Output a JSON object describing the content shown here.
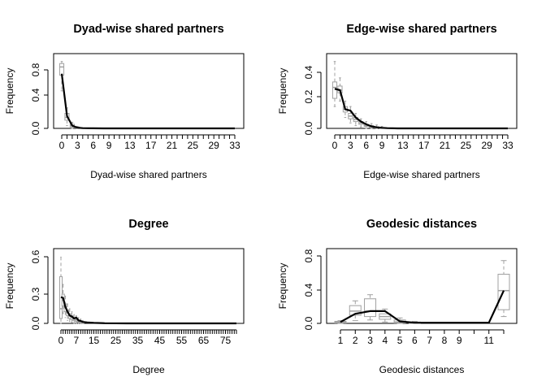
{
  "chart_data": [
    {
      "type": "line",
      "title": "Dyad-wise shared partners",
      "xlabel": "Dyad-wise shared partners",
      "ylabel": "Frequency",
      "xlim": [
        0,
        33
      ],
      "ylim": [
        0,
        1.0
      ],
      "y_ticks": [
        "0.0",
        "0.4",
        "0.8"
      ],
      "x_ticks": [
        "0",
        "3",
        "6",
        "9",
        "13",
        "17",
        "21",
        "25",
        "29",
        "33"
      ],
      "grid": false,
      "x": [
        0,
        1,
        2,
        3,
        4,
        5,
        6,
        8,
        10,
        15,
        20,
        25,
        30,
        33
      ],
      "series": [
        {
          "values": [
            0.8,
            0.18,
            0.04,
            0.01,
            0.004,
            0.002,
            0.001,
            0.0,
            0.0,
            0.0,
            0.0,
            0.0,
            0.0,
            0.0
          ]
        }
      ],
      "boxes": [
        {
          "x": 0,
          "q1": 0.78,
          "q3": 0.95,
          "median": 0.9,
          "lo": 0.55,
          "hi": 0.98
        },
        {
          "x": 1,
          "q1": 0.12,
          "q3": 0.22,
          "median": 0.16,
          "lo": 0.04,
          "hi": 0.3
        },
        {
          "x": 2,
          "q1": 0.02,
          "q3": 0.06,
          "median": 0.04,
          "lo": 0.0,
          "hi": 0.09
        },
        {
          "x": 3,
          "q1": 0.005,
          "q3": 0.02,
          "median": 0.01,
          "lo": 0.0,
          "hi": 0.03
        }
      ]
    },
    {
      "type": "line",
      "title": "Edge-wise shared partners",
      "xlabel": "Edge-wise shared partners",
      "ylabel": "Frequency",
      "xlim": [
        0,
        33
      ],
      "ylim": [
        0,
        0.5
      ],
      "y_ticks": [
        "0.0",
        "0.2",
        "0.4"
      ],
      "x_ticks": [
        "0",
        "3",
        "6",
        "9",
        "13",
        "17",
        "21",
        "25",
        "29",
        "33"
      ],
      "grid": false,
      "x": [
        0,
        1,
        2,
        3,
        4,
        5,
        6,
        7,
        8,
        9,
        10,
        12,
        15,
        20,
        25,
        30,
        33
      ],
      "series": [
        {
          "values": [
            0.29,
            0.28,
            0.14,
            0.13,
            0.08,
            0.05,
            0.03,
            0.015,
            0.008,
            0.004,
            0.002,
            0.0,
            0.0,
            0.0,
            0.0,
            0.0,
            0.0
          ]
        }
      ],
      "boxes": [
        {
          "x": 0,
          "q1": 0.22,
          "q3": 0.34,
          "median": 0.3,
          "lo": 0.16,
          "hi": 0.49
        },
        {
          "x": 1,
          "q1": 0.26,
          "q3": 0.31,
          "median": 0.28,
          "lo": 0.2,
          "hi": 0.37
        },
        {
          "x": 2,
          "q1": 0.12,
          "q3": 0.16,
          "median": 0.14,
          "lo": 0.08,
          "hi": 0.2
        },
        {
          "x": 3,
          "q1": 0.07,
          "q3": 0.11,
          "median": 0.09,
          "lo": 0.04,
          "hi": 0.16
        },
        {
          "x": 4,
          "q1": 0.05,
          "q3": 0.08,
          "median": 0.065,
          "lo": 0.02,
          "hi": 0.11
        },
        {
          "x": 5,
          "q1": 0.03,
          "q3": 0.05,
          "median": 0.04,
          "lo": 0.01,
          "hi": 0.07
        },
        {
          "x": 6,
          "q1": 0.015,
          "q3": 0.03,
          "median": 0.02,
          "lo": 0.0,
          "hi": 0.05
        },
        {
          "x": 7,
          "q1": 0.008,
          "q3": 0.02,
          "median": 0.012,
          "lo": 0.0,
          "hi": 0.035
        },
        {
          "x": 8,
          "q1": 0.003,
          "q3": 0.012,
          "median": 0.006,
          "lo": 0.0,
          "hi": 0.025
        },
        {
          "x": 9,
          "q1": 0.001,
          "q3": 0.006,
          "median": 0.003,
          "lo": 0.0,
          "hi": 0.015
        }
      ]
    },
    {
      "type": "line",
      "title": "Degree",
      "xlabel": "Degree",
      "ylabel": "Frequency",
      "xlim": [
        0,
        80
      ],
      "ylim": [
        0,
        0.7
      ],
      "y_ticks": [
        "0.0",
        "0.3",
        "0.6"
      ],
      "x_ticks": [
        "0",
        "7",
        "15",
        "25",
        "35",
        "45",
        "55",
        "65",
        "75"
      ],
      "grid": false,
      "x": [
        0,
        1,
        2,
        3,
        4,
        5,
        6,
        7,
        8,
        9,
        10,
        12,
        15,
        20,
        30,
        40,
        50,
        60,
        70,
        80
      ],
      "series": [
        {
          "values": [
            0.27,
            0.26,
            0.17,
            0.12,
            0.08,
            0.07,
            0.05,
            0.06,
            0.03,
            0.025,
            0.015,
            0.01,
            0.005,
            0.002,
            0.0,
            0.0,
            0.0,
            0.0,
            0.0,
            0.0
          ]
        }
      ],
      "boxes": [
        {
          "x": 0,
          "q1": 0.05,
          "q3": 0.48,
          "median": 0.15,
          "lo": 0.0,
          "hi": 0.68
        },
        {
          "x": 1,
          "q1": 0.18,
          "q3": 0.3,
          "median": 0.24,
          "lo": 0.1,
          "hi": 0.4
        },
        {
          "x": 2,
          "q1": 0.12,
          "q3": 0.2,
          "median": 0.16,
          "lo": 0.06,
          "hi": 0.28
        },
        {
          "x": 3,
          "q1": 0.08,
          "q3": 0.14,
          "median": 0.11,
          "lo": 0.03,
          "hi": 0.2
        },
        {
          "x": 4,
          "q1": 0.05,
          "q3": 0.1,
          "median": 0.08,
          "lo": 0.02,
          "hi": 0.15
        },
        {
          "x": 5,
          "q1": 0.04,
          "q3": 0.08,
          "median": 0.06,
          "lo": 0.01,
          "hi": 0.12
        },
        {
          "x": 6,
          "q1": 0.03,
          "q3": 0.06,
          "median": 0.045,
          "lo": 0.0,
          "hi": 0.09
        },
        {
          "x": 7,
          "q1": 0.02,
          "q3": 0.05,
          "median": 0.035,
          "lo": 0.0,
          "hi": 0.08
        },
        {
          "x": 8,
          "q1": 0.01,
          "q3": 0.035,
          "median": 0.02,
          "lo": 0.0,
          "hi": 0.06
        },
        {
          "x": 9,
          "q1": 0.005,
          "q3": 0.025,
          "median": 0.015,
          "lo": 0.0,
          "hi": 0.045
        },
        {
          "x": 10,
          "q1": 0.002,
          "q3": 0.015,
          "median": 0.008,
          "lo": 0.0,
          "hi": 0.03
        }
      ]
    },
    {
      "type": "line",
      "title": "Geodesic distances",
      "xlabel": "Geodesic distances",
      "ylabel": "Frequency",
      "categories": [
        "1",
        "2",
        "3",
        "4",
        "5",
        "6",
        "7",
        "8",
        "9",
        "10",
        "11",
        "12"
      ],
      "x_ticks": [
        "1",
        "2",
        "3",
        "4",
        "5",
        "6",
        "7",
        "8",
        "9",
        "11"
      ],
      "ylim": [
        0,
        1.0
      ],
      "y_ticks": [
        "0.0",
        "0.4",
        "0.8"
      ],
      "grid": false,
      "series": [
        {
          "values": [
            0.02,
            0.14,
            0.18,
            0.18,
            0.03,
            0.01,
            0.01,
            0.01,
            0.01,
            0.01,
            0.01,
            0.48
          ]
        }
      ],
      "boxes": [
        {
          "x": 1,
          "q1": 0.005,
          "q3": 0.03,
          "median": 0.015,
          "lo": 0.0,
          "hi": 0.04
        },
        {
          "x": 2,
          "q1": 0.12,
          "q3": 0.26,
          "median": 0.18,
          "lo": 0.04,
          "hi": 0.33
        },
        {
          "x": 3,
          "q1": 0.1,
          "q3": 0.36,
          "median": 0.18,
          "lo": 0.05,
          "hi": 0.42
        },
        {
          "x": 4,
          "q1": 0.06,
          "q3": 0.14,
          "median": 0.1,
          "lo": 0.02,
          "hi": 0.21
        },
        {
          "x": 5,
          "q1": 0.005,
          "q3": 0.05,
          "median": 0.02,
          "lo": 0.0,
          "hi": 0.08
        },
        {
          "x": 6,
          "q1": 0.0,
          "q3": 0.02,
          "median": 0.01,
          "lo": 0.0,
          "hi": 0.03
        },
        {
          "x": 12,
          "q1": 0.2,
          "q3": 0.72,
          "median": 0.48,
          "lo": 0.1,
          "hi": 0.92
        }
      ]
    }
  ]
}
